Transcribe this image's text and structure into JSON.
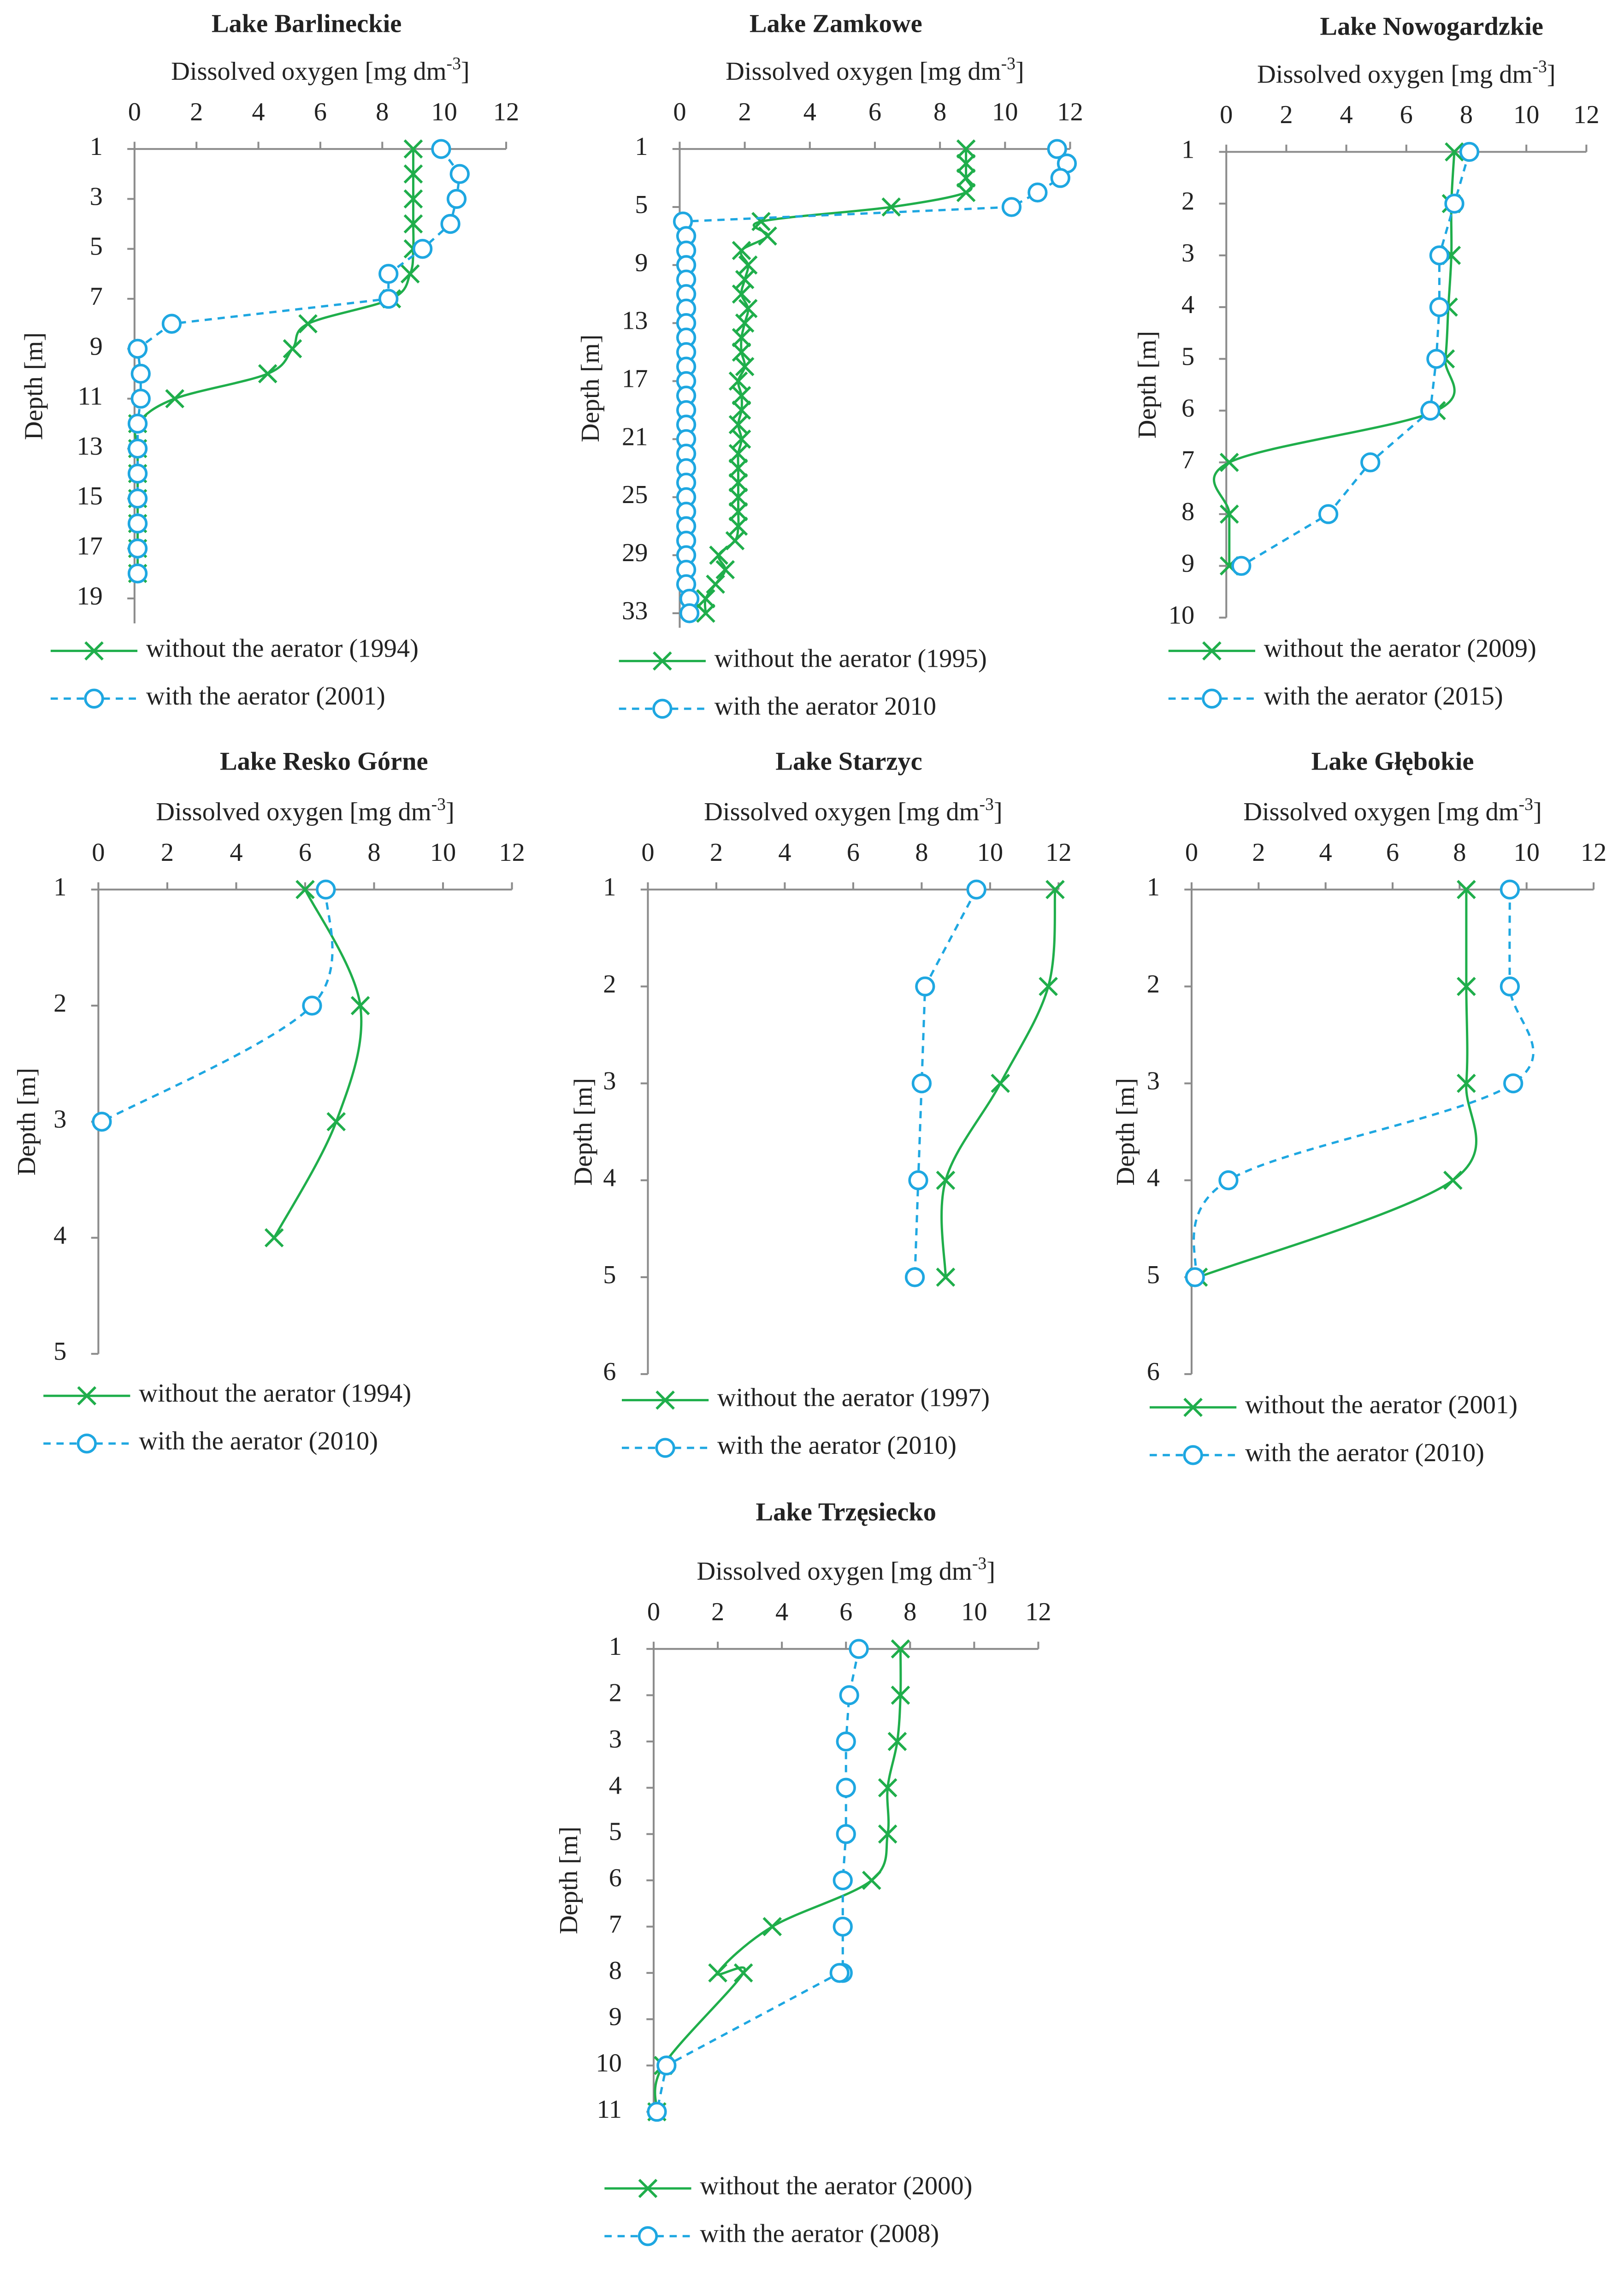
{
  "chart_data": [
    {
      "type": "line",
      "title": "Lake Barlineckie",
      "xlabel": "Dissolved oxygen [mg dm",
      "xlabel_sup": "-3",
      "xlabel_end": "]",
      "ylabel": "Depth [m]",
      "xlim": [
        0,
        12
      ],
      "xticks": [
        0,
        2,
        4,
        6,
        8,
        10,
        12
      ],
      "ylim": [
        1,
        20
      ],
      "yticks": [
        1,
        3,
        5,
        7,
        9,
        11,
        13,
        15,
        17,
        19
      ],
      "y_reversed": true,
      "series": [
        {
          "name": "without the aerator (1994)",
          "color": "#1fae4b",
          "marker": "x",
          "smooth": true,
          "x": [
            9.0,
            9.0,
            9.0,
            9.0,
            9.0,
            8.9,
            8.3,
            5.6,
            5.1,
            4.3,
            1.3,
            0.1,
            0.1,
            0.1,
            0.1,
            0.1,
            0.1,
            0.1
          ],
          "y": [
            1,
            2,
            3,
            4,
            5,
            6,
            7,
            8,
            9,
            10,
            11,
            12,
            13,
            14,
            15,
            16,
            17,
            18
          ]
        },
        {
          "name": "with the aerator (2001)",
          "color": "#1ea7e1",
          "marker": "o",
          "smooth": false,
          "x": [
            9.9,
            10.5,
            10.4,
            10.2,
            9.3,
            8.2,
            8.2,
            1.2,
            0.1,
            0.2,
            0.2,
            0.1,
            0.1,
            0.1,
            0.1,
            0.1,
            0.1,
            0.1
          ],
          "y": [
            1,
            2,
            3,
            4,
            5,
            6,
            7,
            8,
            9,
            10,
            11,
            12,
            13,
            14,
            15,
            16,
            17,
            18
          ]
        }
      ]
    },
    {
      "type": "line",
      "title": "Lake Zamkowe",
      "xlabel": "Dissolved oxygen [mg dm",
      "xlabel_sup": "-3",
      "xlabel_end": "]",
      "ylabel": "Depth [m]",
      "xlim": [
        0,
        12
      ],
      "xticks": [
        0,
        2,
        4,
        6,
        8,
        10,
        12
      ],
      "ylim": [
        1,
        34
      ],
      "yticks": [
        1,
        5,
        9,
        13,
        17,
        21,
        25,
        29,
        33
      ],
      "y_reversed": true,
      "series": [
        {
          "name": "without the aerator (1995)",
          "color": "#1fae4b",
          "marker": "x",
          "smooth": true,
          "x": [
            8.8,
            8.8,
            8.8,
            8.8,
            6.5,
            2.5,
            2.7,
            1.9,
            2.1,
            2.0,
            1.9,
            2.1,
            2.0,
            1.9,
            1.9,
            2.0,
            1.8,
            1.9,
            1.9,
            1.8,
            1.9,
            1.8,
            1.8,
            1.8,
            1.8,
            1.8,
            1.8,
            1.7,
            1.2,
            1.4,
            1.1,
            0.8,
            0.8
          ],
          "y": [
            1,
            2,
            3,
            4,
            5,
            6,
            7,
            8,
            9,
            10,
            11,
            12,
            13,
            14,
            15,
            16,
            17,
            18,
            19,
            20,
            21,
            22,
            23,
            24,
            25,
            26,
            27,
            28,
            29,
            30,
            31,
            32,
            33
          ]
        },
        {
          "name": "with the aerator 2010",
          "color": "#1ea7e1",
          "marker": "o",
          "smooth": false,
          "x": [
            11.6,
            11.9,
            11.7,
            11.0,
            10.2,
            0.1,
            0.2,
            0.2,
            0.2,
            0.2,
            0.2,
            0.2,
            0.2,
            0.2,
            0.2,
            0.2,
            0.2,
            0.2,
            0.2,
            0.2,
            0.2,
            0.2,
            0.2,
            0.2,
            0.2,
            0.2,
            0.2,
            0.2,
            0.2,
            0.2,
            0.2,
            0.3,
            0.3
          ],
          "y": [
            1,
            2,
            3,
            4,
            5,
            6,
            7,
            8,
            9,
            10,
            11,
            12,
            13,
            14,
            15,
            16,
            17,
            18,
            19,
            20,
            21,
            22,
            23,
            24,
            25,
            26,
            27,
            28,
            29,
            30,
            31,
            32,
            33
          ]
        }
      ]
    },
    {
      "type": "line",
      "title": "Lake Nowogardzkie",
      "xlabel": "Dissolved oxygen [mg dm",
      "xlabel_sup": "-3",
      "xlabel_end": "]",
      "ylabel": "Depth [m]",
      "xlim": [
        0,
        12
      ],
      "xticks": [
        0,
        2,
        4,
        6,
        8,
        10,
        12
      ],
      "ylim": [
        1,
        10
      ],
      "yticks": [
        1,
        2,
        3,
        4,
        5,
        6,
        7,
        8,
        9,
        10
      ],
      "y_reversed": true,
      "series": [
        {
          "name": "without the aerator (2009)",
          "color": "#1fae4b",
          "marker": "x",
          "smooth": true,
          "x": [
            7.6,
            7.5,
            7.5,
            7.4,
            7.3,
            7.0,
            0.1,
            0.1,
            0.1
          ],
          "y": [
            1,
            2,
            3,
            4,
            5,
            6,
            7,
            8,
            9
          ]
        },
        {
          "name": "with the aerator (2015)",
          "color": "#1ea7e1",
          "marker": "o",
          "smooth": false,
          "x": [
            8.1,
            7.6,
            7.1,
            7.1,
            7.0,
            6.8,
            4.8,
            3.4,
            0.5
          ],
          "y": [
            1,
            2,
            3,
            4,
            5,
            6,
            7,
            8,
            9
          ]
        }
      ]
    },
    {
      "type": "line",
      "title": "Lake Resko Górne",
      "xlabel": "Dissolved oxygen [mg dm",
      "xlabel_sup": "-3",
      "xlabel_end": "]",
      "ylabel": "Depth [m]",
      "xlim": [
        0,
        12
      ],
      "xticks": [
        0,
        2,
        4,
        6,
        8,
        10,
        12
      ],
      "ylim": [
        1,
        5
      ],
      "yticks": [
        1,
        2,
        3,
        4,
        5
      ],
      "y_reversed": true,
      "series": [
        {
          "name": "without the aerator (1994)",
          "color": "#1fae4b",
          "marker": "x",
          "smooth": true,
          "x": [
            6.0,
            7.6,
            6.9,
            5.1
          ],
          "y": [
            1,
            2,
            3,
            4
          ]
        },
        {
          "name": "with the aerator (2010)",
          "color": "#1ea7e1",
          "marker": "o",
          "smooth": true,
          "x": [
            6.6,
            6.2,
            0.1
          ],
          "y": [
            1,
            2,
            3
          ]
        }
      ]
    },
    {
      "type": "line",
      "title": "Lake Starzyc",
      "xlabel": "Dissolved oxygen [mg dm",
      "xlabel_sup": "-3",
      "xlabel_end": "]",
      "ylabel": "Depth [m]",
      "xlim": [
        0,
        12
      ],
      "xticks": [
        0,
        2,
        4,
        6,
        8,
        10,
        12
      ],
      "ylim": [
        1,
        6
      ],
      "yticks": [
        1,
        2,
        3,
        4,
        5,
        6
      ],
      "y_reversed": true,
      "series": [
        {
          "name": "without the aerator (1997)",
          "color": "#1fae4b",
          "marker": "x",
          "smooth": true,
          "x": [
            11.9,
            11.7,
            10.3,
            8.7,
            8.7
          ],
          "y": [
            1,
            2,
            3,
            4,
            5
          ]
        },
        {
          "name": "with the aerator (2010)",
          "color": "#1ea7e1",
          "marker": "o",
          "smooth": false,
          "x": [
            9.6,
            8.1,
            8.0,
            7.9,
            7.8
          ],
          "y": [
            1,
            2,
            3,
            4,
            5
          ]
        }
      ]
    },
    {
      "type": "line",
      "title": "Lake Głębokie",
      "xlabel": "Dissolved oxygen [mg dm",
      "xlabel_sup": "-3",
      "xlabel_end": "]",
      "ylabel": "Depth [m]",
      "xlim": [
        0,
        12
      ],
      "xticks": [
        0,
        2,
        4,
        6,
        8,
        10,
        12
      ],
      "ylim": [
        1,
        6
      ],
      "yticks": [
        1,
        2,
        3,
        4,
        5,
        6
      ],
      "y_reversed": true,
      "series": [
        {
          "name": "without the aerator (2001)",
          "color": "#1fae4b",
          "marker": "x",
          "smooth": true,
          "x": [
            8.2,
            8.2,
            8.2,
            7.8,
            0.2
          ],
          "y": [
            1,
            2,
            3,
            4,
            5
          ]
        },
        {
          "name": "with the aerator (2010)",
          "color": "#1ea7e1",
          "marker": "o",
          "smooth": true,
          "x": [
            9.5,
            9.5,
            9.6,
            1.1,
            0.1
          ],
          "y": [
            1,
            2,
            3,
            4,
            5
          ]
        }
      ]
    },
    {
      "type": "line",
      "title": "Lake Trzęsiecko",
      "xlabel": "Dissolved oxygen [mg dm",
      "xlabel_sup": "-3",
      "xlabel_end": "]",
      "ylabel": "Depth [m]",
      "xlim": [
        0,
        12
      ],
      "xticks": [
        0,
        2,
        4,
        6,
        8,
        10,
        12
      ],
      "ylim": [
        1,
        11
      ],
      "yticks": [
        1,
        2,
        3,
        4,
        5,
        6,
        7,
        8,
        9,
        10,
        11
      ],
      "y_reversed": true,
      "series": [
        {
          "name": "without the aerator (2000)",
          "color": "#1fae4b",
          "marker": "x",
          "smooth": true,
          "x": [
            7.7,
            7.7,
            7.6,
            7.3,
            7.3,
            6.8,
            3.7,
            2.0,
            2.8,
            0.3,
            0.1
          ],
          "y": [
            1,
            2,
            3,
            4,
            5,
            6,
            7,
            8,
            8,
            10,
            11
          ]
        },
        {
          "name": "with the aerator (2008)",
          "color": "#1ea7e1",
          "marker": "o",
          "smooth": false,
          "x": [
            6.4,
            6.1,
            6.0,
            6.0,
            6.0,
            5.9,
            5.9,
            5.9,
            5.8,
            0.4,
            0.1
          ],
          "y": [
            1,
            2,
            3,
            4,
            5,
            6,
            7,
            8,
            8,
            10,
            11
          ]
        }
      ]
    }
  ]
}
